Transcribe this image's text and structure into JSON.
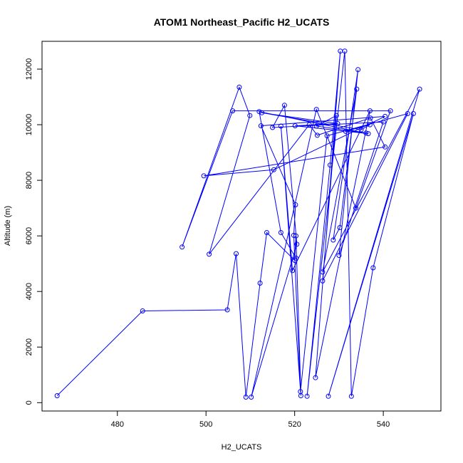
{
  "chart_data": {
    "type": "line",
    "title": "ATOM1 Northeast_Pacific H2_UCATS",
    "xlabel": "H2_UCATS",
    "ylabel": "Altitude (m)",
    "xlim": [
      463,
      553
    ],
    "ylim": [
      -300,
      13000
    ],
    "x_ticks": [
      480,
      500,
      520,
      540
    ],
    "y_ticks": [
      0,
      2000,
      4000,
      6000,
      8000,
      10000,
      12000
    ],
    "series": [
      {
        "color": "#0000ff",
        "marker": "open-circle",
        "points": [
          [
            466.4,
            250
          ],
          [
            485.7,
            3300
          ],
          [
            504.8,
            3340
          ],
          [
            506.8,
            5360
          ],
          [
            509.0,
            200
          ],
          [
            512.2,
            4300
          ],
          [
            513.7,
            6120
          ],
          [
            520.0,
            5120
          ],
          [
            520.3,
            6000
          ],
          [
            521.4,
            250
          ],
          [
            516.9,
            9950
          ],
          [
            519.5,
            4750
          ],
          [
            537.0,
            10500
          ],
          [
            524.7,
            900
          ],
          [
            530.3,
            12650
          ],
          [
            528.0,
            8550
          ],
          [
            522.8,
            230
          ],
          [
            531.3,
            12650
          ],
          [
            532.8,
            230
          ],
          [
            537.7,
            4850
          ],
          [
            546.8,
            10400
          ],
          [
            527.6,
            230
          ],
          [
            548.2,
            11280
          ],
          [
            526.3,
            4700
          ],
          [
            534.0,
            11280
          ],
          [
            530.2,
            6300
          ],
          [
            528.7,
            5850
          ],
          [
            534.3,
            11980
          ],
          [
            530.0,
            5300
          ],
          [
            540.0,
            10100
          ],
          [
            515.0,
            9900
          ],
          [
            517.7,
            10700
          ],
          [
            520.5,
            5700
          ],
          [
            510.2,
            200
          ],
          [
            524.9,
            10550
          ],
          [
            533.8,
            7000
          ],
          [
            541.6,
            10500
          ],
          [
            506.0,
            10500
          ],
          [
            494.6,
            5600
          ],
          [
            507.5,
            11350
          ],
          [
            509.9,
            10330
          ],
          [
            500.7,
            5340
          ],
          [
            523.3,
            10000
          ],
          [
            525.1,
            9620
          ],
          [
            537.1,
            10240
          ],
          [
            540.4,
            9200
          ],
          [
            499.5,
            8160
          ],
          [
            515.3,
            8380
          ],
          [
            540.4,
            10300
          ],
          [
            512.4,
            9960
          ],
          [
            520.2,
            7120
          ],
          [
            519.8,
            6020
          ],
          [
            521.3,
            400
          ],
          [
            527.3,
            9600
          ],
          [
            545.5,
            10400
          ],
          [
            526.3,
            4380
          ],
          [
            529.4,
            10330
          ],
          [
            524.9,
            9950
          ],
          [
            536.1,
            9700
          ],
          [
            531.5,
            9760
          ],
          [
            537.0,
            10000
          ],
          [
            535.0,
            9820
          ],
          [
            512.6,
            10430
          ],
          [
            529.7,
            10040
          ],
          [
            520.1,
            9960
          ],
          [
            536.6,
            9680
          ],
          [
            512.0,
            10470
          ],
          [
            516.9,
            6120
          ],
          [
            520.3,
            5200
          ]
        ]
      }
    ]
  }
}
